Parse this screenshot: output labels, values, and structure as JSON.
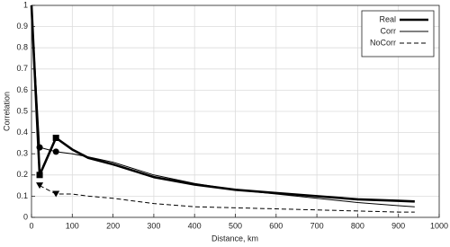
{
  "chart_data": {
    "type": "line",
    "x_label": "Distance, km",
    "y_label": "Correlation",
    "x": [
      0,
      20,
      60,
      100,
      140,
      200,
      300,
      400,
      500,
      600,
      700,
      800,
      900,
      940
    ],
    "series": [
      {
        "name": "Real",
        "color": "#000000",
        "style": "thick",
        "marker": "square",
        "values": [
          1,
          0.2,
          0.375,
          0.32,
          0.28,
          0.25,
          0.19,
          0.155,
          0.13,
          0.115,
          0.1,
          0.085,
          0.078,
          0.075
        ]
      },
      {
        "name": "Corr",
        "color": "#000000",
        "style": "thin",
        "marker": "circle",
        "values": [
          1,
          0.33,
          0.31,
          0.3,
          0.285,
          0.26,
          0.2,
          0.16,
          0.13,
          0.11,
          0.09,
          0.07,
          0.055,
          0.05
        ]
      },
      {
        "name": "NoCorr",
        "color": "#000000",
        "style": "dashed",
        "marker": "triangle-down",
        "values": [
          null,
          0.15,
          0.11,
          0.11,
          0.1,
          0.09,
          0.065,
          0.05,
          0.045,
          0.04,
          0.035,
          0.03,
          0.025,
          0.025
        ]
      }
    ],
    "xlim": [
      0,
      1000
    ],
    "xticks": [
      0,
      100,
      200,
      300,
      400,
      500,
      600,
      700,
      800,
      900,
      1000
    ],
    "ylim": [
      0,
      1
    ],
    "yticks": [
      0,
      0.1,
      0.2,
      0.3,
      0.4,
      0.5,
      0.6,
      0.7,
      0.8,
      0.9,
      1
    ],
    "grid": true,
    "legend": "upper right"
  }
}
